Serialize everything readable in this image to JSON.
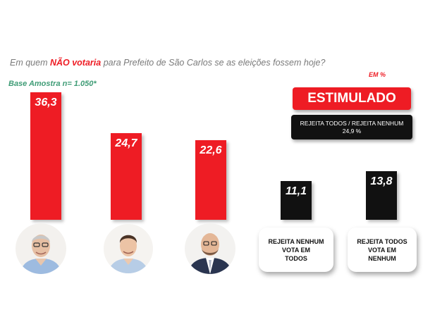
{
  "header": {
    "title_pre": "Em quem ",
    "title_emph": "NÃO votaria",
    "title_post": " para Prefeito de São Carlos se as eleições fossem hoje?",
    "base": "Base Amostra n= 1.050*",
    "unit": "EM %"
  },
  "badge": {
    "label": "ESTIMULADO",
    "reject_line1": "REJEITA TODOS / REJEITA NENHUM",
    "reject_line2": "24,9 %"
  },
  "colors": {
    "candidate": "#ee1c24",
    "other": "#111111"
  },
  "chart_data": {
    "type": "bar",
    "categories": [
      "candidate-1",
      "candidate-2",
      "candidate-3",
      "REJEITA NENHUM VOTA EM TODOS",
      "REJEITA TODOS VOTA EM NENHUM"
    ],
    "values": [
      36.3,
      24.7,
      22.6,
      11.1,
      13.8
    ],
    "value_labels": [
      "36,3",
      "24,7",
      "22,6",
      "11,1",
      "13,8"
    ],
    "bar_colors": [
      "#ee1c24",
      "#ee1c24",
      "#ee1c24",
      "#111111",
      "#111111"
    ],
    "ylim": [
      0,
      40
    ]
  },
  "options": [
    {
      "line1": "REJEITA NENHUM",
      "line2": "VOTA EM",
      "line3": "TODOS"
    },
    {
      "line1": "REJEITA TODOS",
      "line2": "VOTA EM",
      "line3": "NENHUM"
    }
  ]
}
